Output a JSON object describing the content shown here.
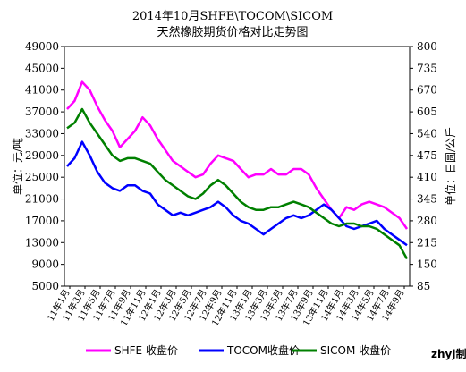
{
  "chart_data": {
    "type": "line",
    "title": "2014年10月SHFE\\TOCOM\\SICOM",
    "subtitle": "天然橡胶期货价格对比走势图",
    "ylabel_left": "单位：元/吨",
    "ylabel_right": "单位：日圆/公斤",
    "credit": "zhyj制",
    "y_left": {
      "min": 5000,
      "max": 49000,
      "ticks": [
        5000,
        9000,
        13000,
        17000,
        21000,
        25000,
        29000,
        33000,
        37000,
        41000,
        45000,
        49000
      ]
    },
    "y_right": {
      "min": 85,
      "max": 800,
      "ticks": [
        85,
        150,
        215,
        280,
        345,
        410,
        475,
        540,
        605,
        670,
        735,
        800
      ]
    },
    "x_ticks": [
      "11年1月",
      "11年3月",
      "11年5月",
      "11年7月",
      "11年9月",
      "11年11月",
      "12年1月",
      "12年3月",
      "12年5月",
      "12年7月",
      "12年9月",
      "12年11月",
      "13年1月",
      "13年3月",
      "13年5月",
      "13年7月",
      "13年9月",
      "13年11月",
      "14年1月",
      "14年3月",
      "14年5月",
      "14年7月",
      "14年9月"
    ],
    "x_count": 46,
    "series": [
      {
        "name": "SHFE 收盘价",
        "axis": "left",
        "color": "#ff00ff",
        "values": [
          37500,
          39000,
          42500,
          41000,
          38000,
          35500,
          33500,
          30500,
          32000,
          33500,
          36000,
          34500,
          32000,
          30000,
          28000,
          27000,
          26000,
          25000,
          25500,
          27500,
          29000,
          28500,
          28000,
          26500,
          25000,
          25500,
          25500,
          26500,
          25500,
          25500,
          26500,
          26500,
          25500,
          23000,
          21000,
          19000,
          17500,
          19500,
          19000,
          20000,
          20500,
          20000,
          19500,
          18500,
          17500,
          15500
        ]
      },
      {
        "name": "TOCOM收盘价",
        "axis": "left",
        "color": "#0000ff",
        "values": [
          27000,
          28500,
          31500,
          29000,
          26000,
          24000,
          23000,
          22500,
          23500,
          23500,
          22500,
          22000,
          20000,
          19000,
          18000,
          18500,
          18000,
          18500,
          19000,
          19500,
          20500,
          19500,
          18000,
          17000,
          16500,
          15500,
          14500,
          15500,
          16500,
          17500,
          18000,
          17500,
          18000,
          19000,
          20000,
          19000,
          17500,
          16000,
          15500,
          16000,
          16500,
          17000,
          15500,
          14500,
          13500,
          12500
        ]
      },
      {
        "name": "SICOM 收盘价",
        "axis": "left",
        "color": "#008000",
        "values": [
          34000,
          35000,
          37500,
          35000,
          33000,
          31000,
          29000,
          28000,
          28500,
          28500,
          28000,
          27500,
          26000,
          24500,
          23500,
          22500,
          21500,
          21000,
          22000,
          23500,
          24500,
          23500,
          22000,
          20500,
          19500,
          19000,
          19000,
          19500,
          19500,
          20000,
          20500,
          20000,
          19500,
          18500,
          17500,
          16500,
          16000,
          16500,
          16500,
          16000,
          16000,
          15500,
          14500,
          13500,
          12500,
          10000
        ]
      }
    ]
  }
}
